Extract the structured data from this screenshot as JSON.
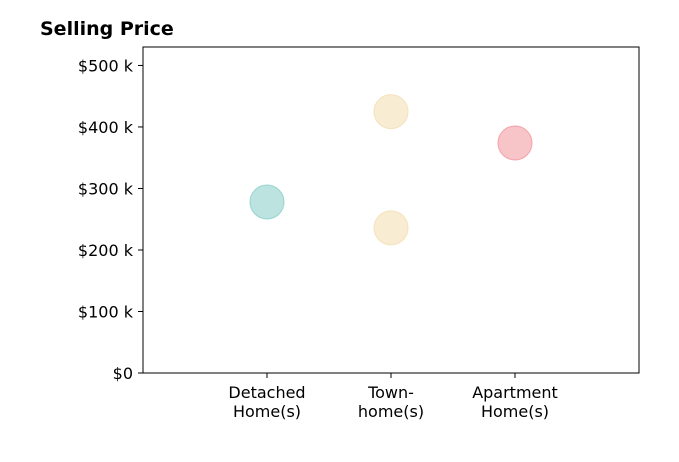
{
  "chart_data": {
    "type": "scatter",
    "title": "Selling Price",
    "xlabel": "",
    "ylabel": "",
    "categories": [
      [
        "Detached",
        "Home(s)"
      ],
      [
        "Town-",
        "home(s)"
      ],
      [
        "Apartment",
        "Home(s)"
      ]
    ],
    "ylim": [
      0,
      530000
    ],
    "yticks": [
      0,
      100000,
      200000,
      300000,
      400000,
      500000
    ],
    "ytick_labels": [
      "$0",
      "$100 k",
      "$200 k",
      "$300 k",
      "$400 k",
      "$500 k"
    ],
    "grid": false,
    "points": [
      {
        "category": 0,
        "value": 278000,
        "color": "#8fd1cc"
      },
      {
        "category": 1,
        "value": 425000,
        "color": "#f3e0b5"
      },
      {
        "category": 1,
        "value": 236000,
        "color": "#f3e0b5"
      },
      {
        "category": 2,
        "value": 374000,
        "color": "#f29ca3"
      }
    ]
  }
}
